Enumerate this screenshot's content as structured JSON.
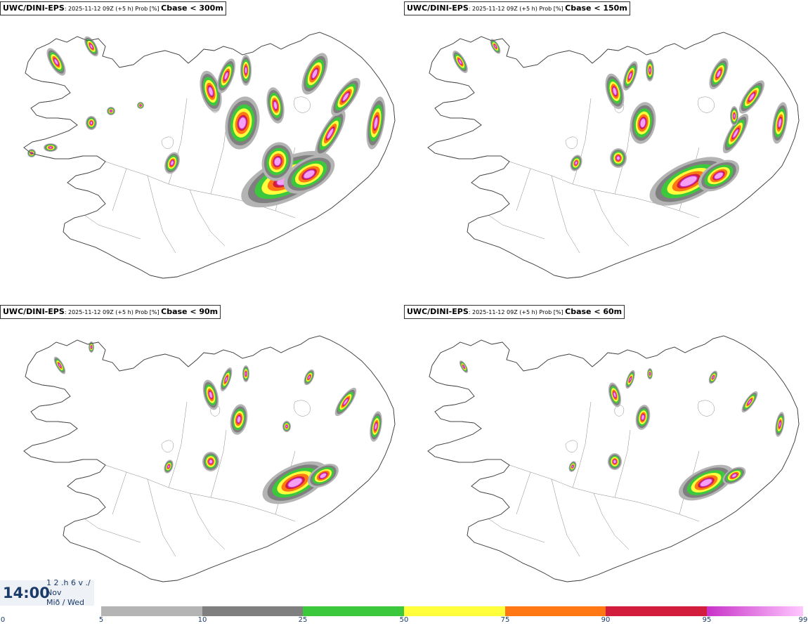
{
  "panels": [
    {
      "model": "UWC/DINI-EPS",
      "meta": ": 2025-11-12 09Z (+5 h) Prob [%]",
      "param": "Cbase < 300m"
    },
    {
      "model": "UWC/DINI-EPS",
      "meta": ": 2025-11-12 09Z (+5 h) Prob [%]",
      "param": "Cbase < 150m"
    },
    {
      "model": "UWC/DINI-EPS",
      "meta": ": 2025-11-12 09Z (+5 h) Prob [%]",
      "param": "Cbase < 90m"
    },
    {
      "model": "UWC/DINI-EPS",
      "meta": ": 2025-11-12 09Z (+5 h) Prob [%]",
      "param": "Cbase < 60m"
    }
  ],
  "time": {
    "clock": "14:00",
    "line1": "1 2 .h 6 v ./",
    "line2": "Nov",
    "line3": "Mið / Wed"
  },
  "legend": {
    "ticks": [
      "0",
      "5",
      "10",
      "25",
      "50",
      "75",
      "90",
      "95",
      "99"
    ],
    "bins": [
      {
        "from": "5",
        "to": "10",
        "color": "#b4b4b4"
      },
      {
        "from": "10",
        "to": "25",
        "color": "#7f7f7f"
      },
      {
        "from": "25",
        "to": "50",
        "color": "#3cc83c"
      },
      {
        "from": "50",
        "to": "75",
        "color": "#ffff3c"
      },
      {
        "from": "75",
        "to": "90",
        "color": "#ff7814"
      },
      {
        "from": "90",
        "to": "95",
        "color": "#d21e3c"
      },
      {
        "from": "95",
        "to": "99",
        "color": "#c832c8",
        "to_color": "#ffc8ff"
      }
    ]
  },
  "colors": {
    "gray_light": "#b4b4b4",
    "gray_dark": "#7f7f7f",
    "green": "#3cc83c",
    "yellow": "#ffff3c",
    "orange": "#ff7814",
    "red": "#d21e3c",
    "magenta": "#c832c8",
    "pink": "#f5a0f5",
    "coast": "#444444"
  }
}
